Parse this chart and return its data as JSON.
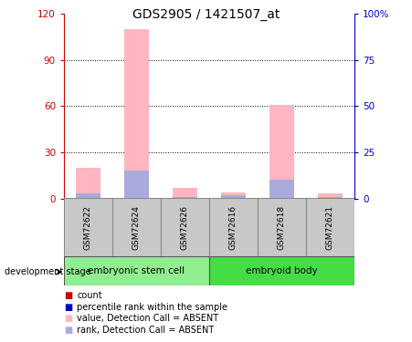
{
  "title": "GDS2905 / 1421507_at",
  "samples": [
    "GSM72622",
    "GSM72624",
    "GSM72626",
    "GSM72616",
    "GSM72618",
    "GSM72621"
  ],
  "group_labels": [
    "embryonic stem cell",
    "embryoid body"
  ],
  "pink_values": [
    20,
    110,
    7,
    4,
    61,
    3
  ],
  "blue_values": [
    3,
    18,
    1,
    2,
    12,
    1
  ],
  "ylim_left": [
    0,
    120
  ],
  "ylim_right": [
    0,
    100
  ],
  "yticks_left": [
    0,
    30,
    60,
    90,
    120
  ],
  "yticks_right": [
    0,
    25,
    50,
    75,
    100
  ],
  "yticklabels_left": [
    "0",
    "30",
    "60",
    "90",
    "120"
  ],
  "yticklabels_right": [
    "0",
    "25",
    "50",
    "75",
    "100%"
  ],
  "color_pink": "#FFB6C1",
  "color_blue": "#AAAADD",
  "color_red": "#CC0000",
  "color_darkblue": "#0000CC",
  "left_axis_color": "#CC0000",
  "right_axis_color": "#0000CC",
  "grid_color": "#000000",
  "tick_fontsize": 7.5,
  "title_fontsize": 10,
  "legend_fontsize": 7,
  "sample_box_color": "#C8C8C8",
  "group_color_1": "#90EE90",
  "group_color_2": "#44DD44",
  "bar_width": 0.5
}
